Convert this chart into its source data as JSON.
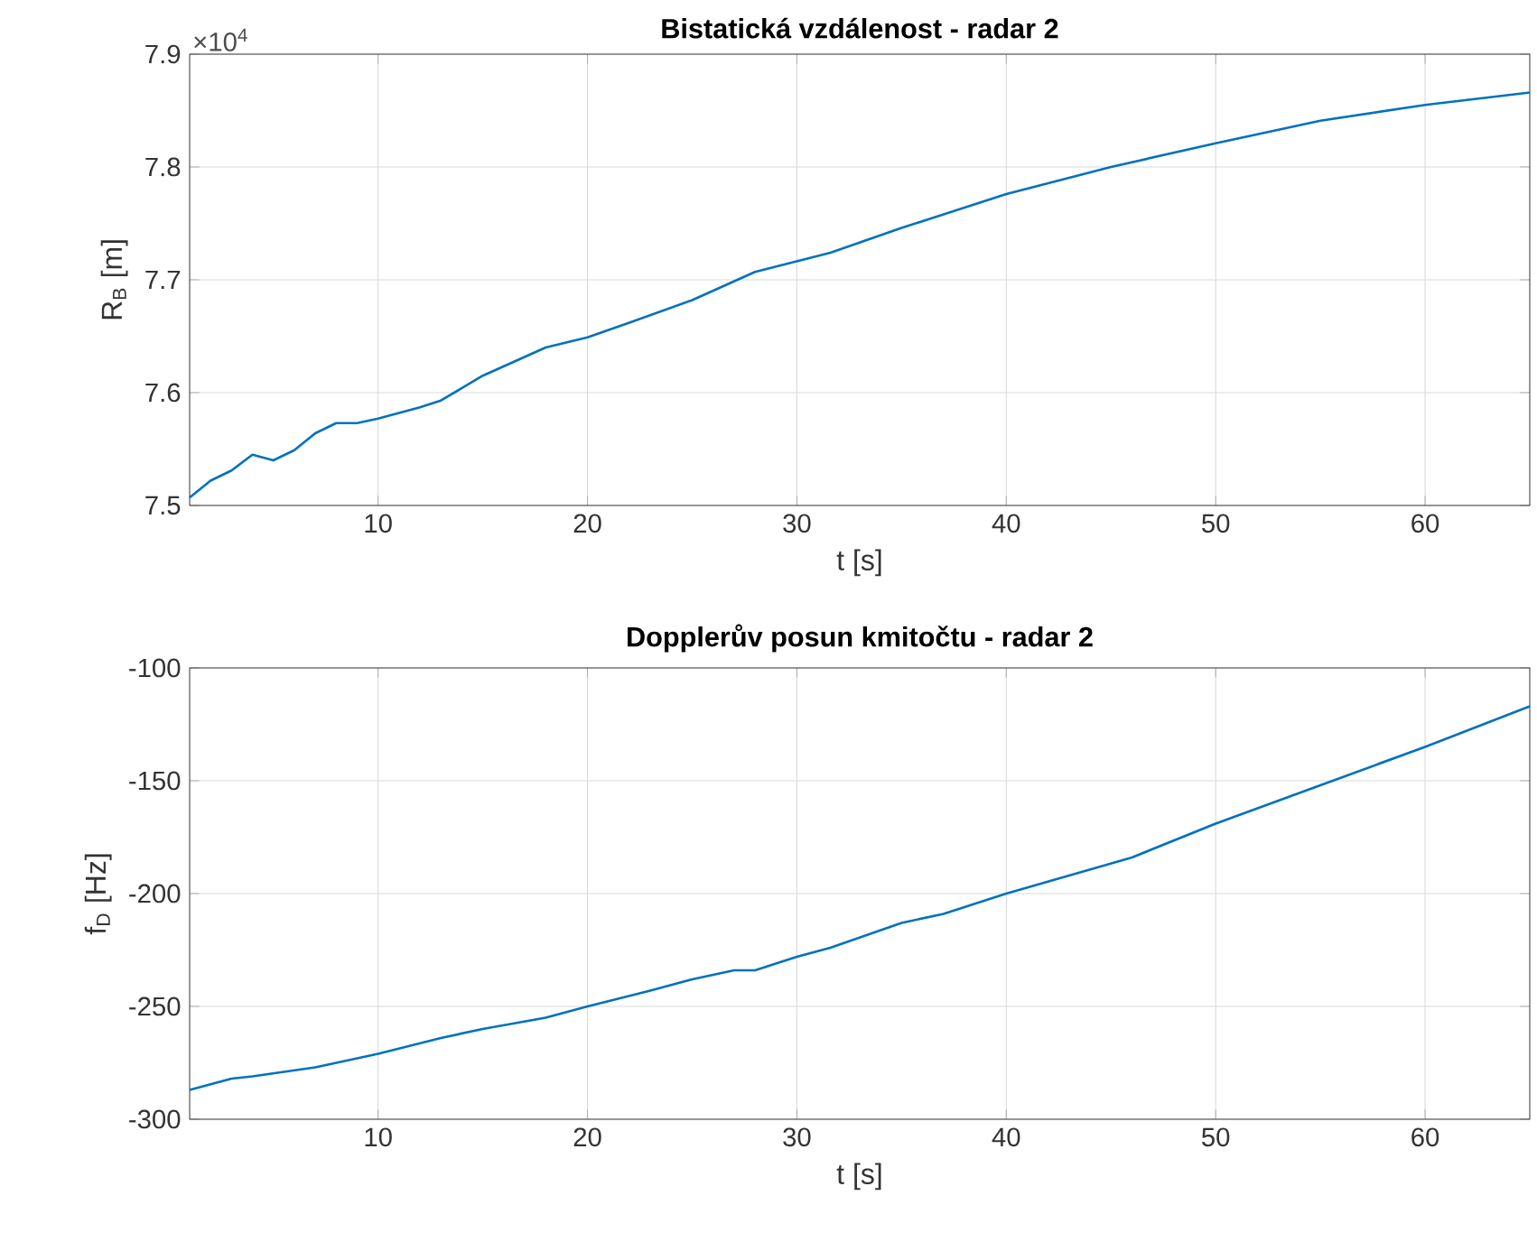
{
  "chart_data": [
    {
      "type": "line",
      "title": "Bistatická vzdálenost - radar 2",
      "xlabel": "t [s]",
      "ylabel": "R$_{B}$ [m]",
      "annotations": [
        "×10$^{4}$"
      ],
      "x": [
        1,
        2,
        3,
        4,
        5,
        6,
        7,
        8,
        9,
        10,
        12,
        13,
        15,
        18,
        20,
        22,
        25,
        28,
        31.6,
        35,
        40,
        45,
        50,
        55,
        60,
        65
      ],
      "series": [
        {
          "color": "#0072bd",
          "values": [
            7.507,
            7.522,
            7.531,
            7.545,
            7.54,
            7.549,
            7.564,
            7.573,
            7.573,
            7.577,
            7.587,
            7.593,
            7.615,
            7.64,
            7.649,
            7.662,
            7.682,
            7.707,
            7.724,
            7.746,
            7.776,
            7.8,
            7.821,
            7.841,
            7.855,
            7.866
          ]
        }
      ],
      "xlim": [
        1,
        65
      ],
      "ylim": [
        7.5,
        7.9
      ],
      "xticks": [
        10,
        20,
        30,
        40,
        50,
        60
      ],
      "yticks": [
        7.5,
        7.6,
        7.7,
        7.8,
        7.9
      ],
      "grid": true
    },
    {
      "type": "line",
      "title": "Dopplerův posun kmitočtu - radar 2",
      "xlabel": "t [s]",
      "ylabel": "f$_{D}$ [Hz]",
      "x": [
        1,
        3,
        4,
        7,
        10,
        13,
        15,
        18,
        20,
        23,
        25,
        27,
        28,
        30,
        31.6,
        35,
        37,
        40,
        43,
        46,
        50,
        55,
        60,
        65
      ],
      "series": [
        {
          "color": "#0072bd",
          "values": [
            -287,
            -282,
            -281,
            -277,
            -271,
            -264,
            -260,
            -255,
            -250,
            -243,
            -238,
            -234,
            -234,
            -228,
            -224,
            -213,
            -209,
            -200,
            -192,
            -184,
            -169,
            -152,
            -135,
            -117
          ]
        }
      ],
      "xlim": [
        1,
        65
      ],
      "ylim": [
        -300,
        -100
      ],
      "xticks": [
        10,
        20,
        30,
        40,
        50,
        60
      ],
      "yticks": [
        -300,
        -250,
        -200,
        -150,
        -100
      ],
      "grid": true
    }
  ]
}
